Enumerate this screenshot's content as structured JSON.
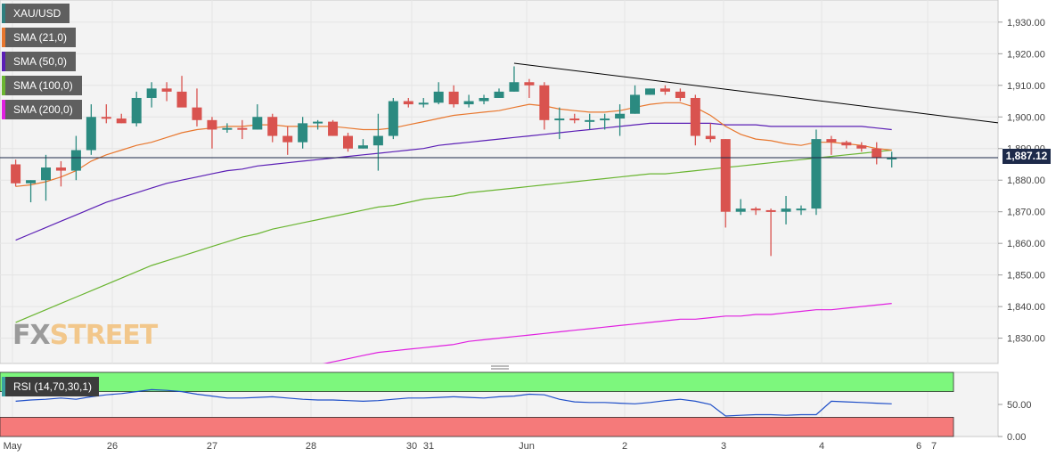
{
  "legend": [
    {
      "label": "XAU/USD",
      "color": "#2f7f7f"
    },
    {
      "label": "SMA (21,0)",
      "color": "#e8772e"
    },
    {
      "label": "SMA (50,0)",
      "color": "#5b1fb5"
    },
    {
      "label": "SMA (100,0)",
      "color": "#6ab531"
    },
    {
      "label": "SMA (200,0)",
      "color": "#e020e0"
    }
  ],
  "rsi_label": "RSI (14,70,30,1)",
  "logo": {
    "part1": "FX",
    "part2": "STREET"
  },
  "current_price_label": "1,887.12",
  "colors": {
    "up": "#2b8a80",
    "down": "#d9534f",
    "sma21": "#e8772e",
    "sma50": "#5b1fb5",
    "sma100": "#6ab531",
    "sma200": "#e020e0",
    "rsi_line": "#1f4fc8",
    "overbought": "#7df77d",
    "oversold": "#f57a7a",
    "trendline": "#000000"
  },
  "chart_data": {
    "type": "candlestick",
    "symbol": "XAU/USD",
    "timeframe": "hourly",
    "ylim": [
      1822,
      1937
    ],
    "y_ticks": [
      "1,930.00",
      "1,920.00",
      "1,910.00",
      "1,900.00",
      "1,890.00",
      "1,880.00",
      "1,870.00",
      "1,860.00",
      "1,850.00",
      "1,840.00",
      "1,830.00"
    ],
    "x_ticks": [
      "May",
      "26",
      "27",
      "28",
      "30",
      "31",
      "Jun",
      "2",
      "3",
      "4",
      "6",
      "7"
    ],
    "current_price": 1887.12,
    "candles": [
      [
        1885.0,
        1886.5,
        1878.0,
        1879.0
      ],
      [
        1879.0,
        1880.0,
        1873.0,
        1880.0
      ],
      [
        1880.0,
        1888.0,
        1873.5,
        1884.0
      ],
      [
        1884.0,
        1886.0,
        1878.0,
        1883.0
      ],
      [
        1883.0,
        1894.0,
        1880.0,
        1889.5
      ],
      [
        1889.5,
        1904.0,
        1888.0,
        1900.0
      ],
      [
        1900.0,
        1904.0,
        1898.0,
        1899.5
      ],
      [
        1899.5,
        1901.0,
        1898.0,
        1898.0
      ],
      [
        1898.0,
        1908.0,
        1897.0,
        1906.0
      ],
      [
        1906.0,
        1911.0,
        1903.0,
        1909.0
      ],
      [
        1909.0,
        1911.0,
        1905.0,
        1908.0
      ],
      [
        1908.0,
        1913.0,
        1904.0,
        1903.0
      ],
      [
        1903.0,
        1909.0,
        1897.0,
        1899.0
      ],
      [
        1899.0,
        1900.0,
        1890.0,
        1896.0
      ],
      [
        1896.0,
        1898.0,
        1895.0,
        1896.5
      ],
      [
        1896.5,
        1899.0,
        1893.0,
        1896.0
      ],
      [
        1896.0,
        1904.0,
        1896.0,
        1900.0
      ],
      [
        1900.0,
        1901.0,
        1892.0,
        1894.0
      ],
      [
        1894.0,
        1897.0,
        1888.0,
        1892.0
      ],
      [
        1892.0,
        1900.0,
        1890.0,
        1898.0
      ],
      [
        1898.0,
        1899.0,
        1896.0,
        1898.5
      ],
      [
        1898.5,
        1899.0,
        1894.0,
        1894.0
      ],
      [
        1894.0,
        1895.0,
        1889.0,
        1890.0
      ],
      [
        1890.0,
        1893.0,
        1890.0,
        1891.0
      ],
      [
        1891.0,
        1901.0,
        1883.0,
        1894.0
      ],
      [
        1894.0,
        1906.0,
        1893.0,
        1905.0
      ],
      [
        1905.0,
        1906.0,
        1903.0,
        1904.0
      ],
      [
        1904.0,
        1906.0,
        1903.0,
        1904.5
      ],
      [
        1904.5,
        1911.0,
        1904.0,
        1908.0
      ],
      [
        1908.0,
        1910.0,
        1903.0,
        1904.0
      ],
      [
        1904.0,
        1907.0,
        1903.0,
        1905.0
      ],
      [
        1905.0,
        1907.0,
        1904.0,
        1906.0
      ],
      [
        1906.0,
        1909.0,
        1906.0,
        1908.0
      ],
      [
        1908.0,
        1916.0,
        1908.0,
        1911.0
      ],
      [
        1911.0,
        1912.0,
        1906.0,
        1910.0
      ],
      [
        1910.0,
        1911.0,
        1896.0,
        1899.0
      ],
      [
        1899.0,
        1903.0,
        1893.0,
        1899.5
      ],
      [
        1899.5,
        1901.0,
        1898.0,
        1899.0
      ],
      [
        1899.0,
        1901.0,
        1896.0,
        1899.0
      ],
      [
        1899.0,
        1901.0,
        1896.0,
        1899.5
      ],
      [
        1899.5,
        1904.0,
        1894.0,
        1901.0
      ],
      [
        1901.0,
        1910.0,
        1901.0,
        1907.0
      ],
      [
        1907.0,
        1909.0,
        1907.0,
        1909.0
      ],
      [
        1909.0,
        1910.0,
        1907.0,
        1908.0
      ],
      [
        1908.0,
        1909.0,
        1905.0,
        1906.0
      ],
      [
        1906.0,
        1907.0,
        1891.0,
        1894.0
      ],
      [
        1894.0,
        1898.0,
        1892.0,
        1893.0
      ],
      [
        1893.0,
        1893.0,
        1865.0,
        1870.0
      ],
      [
        1870.0,
        1874.0,
        1869.0,
        1871.0
      ],
      [
        1871.0,
        1871.5,
        1869.0,
        1870.5
      ],
      [
        1870.5,
        1871.0,
        1856.0,
        1870.0
      ],
      [
        1870.0,
        1875.0,
        1866.0,
        1871.0
      ],
      [
        1871.0,
        1872.0,
        1869.0,
        1871.0
      ],
      [
        1871.0,
        1896.0,
        1869.0,
        1893.0
      ],
      [
        1893.0,
        1894.0,
        1888.0,
        1892.0
      ],
      [
        1892.0,
        1892.5,
        1890.0,
        1891.0
      ],
      [
        1891.0,
        1892.0,
        1889.0,
        1890.0
      ],
      [
        1890.0,
        1892.0,
        1885.0,
        1887.0
      ],
      [
        1887.0,
        1889.0,
        1884.0,
        1887.12
      ]
    ],
    "sma21": [
      1878.0,
      1878.5,
      1879.5,
      1881.0,
      1883.0,
      1886.0,
      1888.0,
      1889.5,
      1891.0,
      1892.0,
      1893.5,
      1895.0,
      1896.0,
      1896.5,
      1897.0,
      1897.0,
      1897.5,
      1897.5,
      1897.0,
      1897.0,
      1897.0,
      1897.0,
      1896.5,
      1896.0,
      1896.0,
      1896.5,
      1897.5,
      1898.5,
      1899.5,
      1900.5,
      1901.0,
      1901.5,
      1902.0,
      1903.0,
      1904.0,
      1903.5,
      1902.5,
      1902.0,
      1901.5,
      1901.5,
      1902.0,
      1903.0,
      1904.0,
      1904.5,
      1904.5,
      1903.0,
      1900.5,
      1897.0,
      1894.5,
      1893.0,
      1892.5,
      1891.5,
      1891.0,
      1892.0,
      1892.0,
      1891.5,
      1891.0,
      1890.0,
      1889.5
    ],
    "sma50": [
      1861.0,
      1863.0,
      1865.0,
      1867.0,
      1869.0,
      1871.0,
      1873.0,
      1874.5,
      1876.0,
      1877.5,
      1879.0,
      1880.0,
      1881.0,
      1882.0,
      1883.0,
      1883.5,
      1884.5,
      1885.0,
      1885.5,
      1886.0,
      1886.5,
      1887.0,
      1887.5,
      1888.0,
      1888.5,
      1889.0,
      1889.5,
      1890.0,
      1891.0,
      1891.5,
      1892.0,
      1892.5,
      1893.0,
      1893.5,
      1894.0,
      1894.5,
      1895.0,
      1895.5,
      1896.0,
      1896.5,
      1897.0,
      1897.5,
      1898.0,
      1898.0,
      1898.0,
      1898.0,
      1898.0,
      1897.5,
      1897.5,
      1897.5,
      1897.0,
      1897.0,
      1897.0,
      1897.0,
      1897.0,
      1897.0,
      1897.0,
      1896.5,
      1896.0
    ],
    "sma100": [
      1835.0,
      1837.0,
      1839.0,
      1841.0,
      1843.0,
      1845.0,
      1847.0,
      1849.0,
      1851.0,
      1853.0,
      1854.5,
      1856.0,
      1857.5,
      1859.0,
      1860.5,
      1862.0,
      1863.0,
      1864.5,
      1865.5,
      1866.5,
      1867.5,
      1868.5,
      1869.5,
      1870.5,
      1871.5,
      1872.0,
      1873.0,
      1874.0,
      1874.5,
      1875.0,
      1876.0,
      1876.5,
      1877.0,
      1877.5,
      1878.0,
      1878.5,
      1879.0,
      1879.5,
      1880.0,
      1880.5,
      1881.0,
      1881.5,
      1882.0,
      1882.0,
      1882.5,
      1883.0,
      1883.5,
      1884.0,
      1884.5,
      1885.0,
      1885.5,
      1886.0,
      1886.5,
      1887.0,
      1887.5,
      1888.0,
      1888.5,
      1889.0,
      1889.5
    ],
    "sma200": [
      1805.0,
      1806.0,
      1807.0,
      1808.0,
      1809.0,
      1810.0,
      1811.0,
      1812.0,
      1813.0,
      1814.0,
      1815.0,
      1816.0,
      1817.0,
      1818.0,
      1818.5,
      1819.0,
      1819.5,
      1820.0,
      1820.5,
      1821.0,
      1821.5,
      1822.5,
      1823.5,
      1824.5,
      1825.5,
      1826.0,
      1826.5,
      1827.0,
      1827.5,
      1828.0,
      1829.0,
      1829.5,
      1830.0,
      1830.5,
      1831.0,
      1831.5,
      1832.0,
      1832.5,
      1833.0,
      1833.5,
      1834.0,
      1834.5,
      1835.0,
      1835.5,
      1836.0,
      1836.0,
      1836.5,
      1837.0,
      1837.0,
      1837.5,
      1837.5,
      1838.0,
      1838.5,
      1839.0,
      1839.0,
      1839.5,
      1840.0,
      1840.5,
      1841.0
    ],
    "trendline": {
      "start": [
        33,
        1917
      ],
      "end": [
        67,
        1897
      ]
    },
    "rsi": {
      "label": "RSI (14,70,30,1)",
      "ylim": [
        0,
        100
      ],
      "overbought": 70,
      "oversold": 30,
      "y_ticks": [
        "50.00",
        "0.00"
      ],
      "values": [
        55,
        57,
        58,
        60,
        58,
        62,
        65,
        67,
        70,
        73,
        72,
        70,
        66,
        63,
        60,
        60,
        61,
        62,
        60,
        58,
        57,
        57,
        56,
        55,
        56,
        58,
        60,
        60,
        61,
        62,
        61,
        60,
        62,
        63,
        66,
        65,
        58,
        54,
        53,
        53,
        52,
        51,
        53,
        56,
        58,
        55,
        50,
        32,
        33,
        34,
        34,
        33,
        34,
        34,
        55,
        54,
        53,
        52,
        51
      ]
    }
  }
}
